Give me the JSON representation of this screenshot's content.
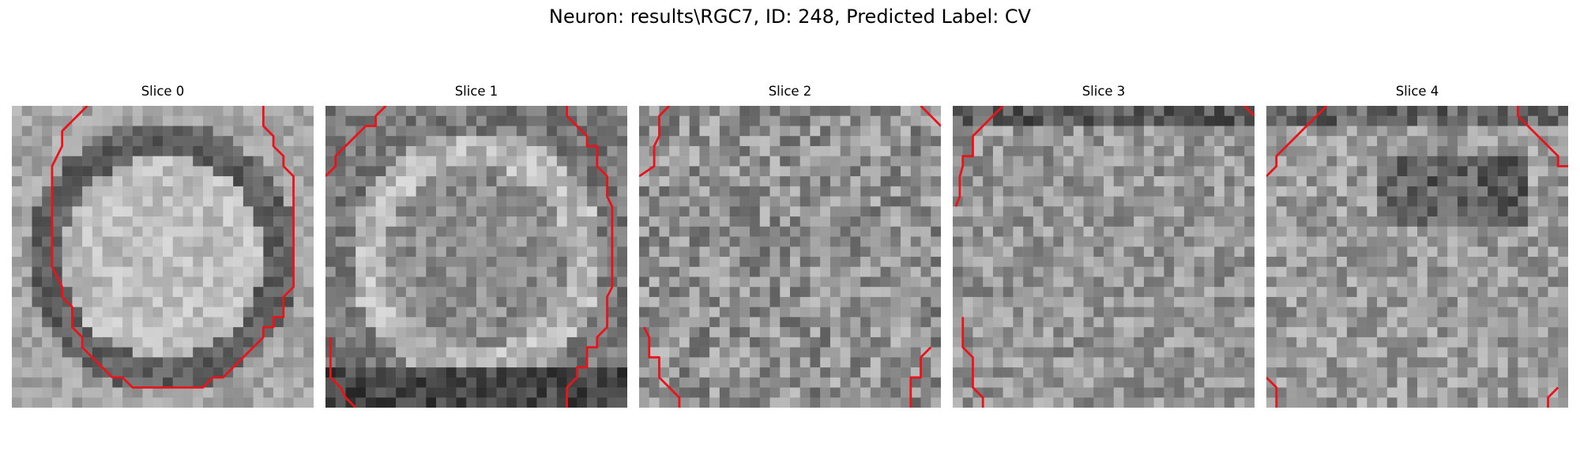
{
  "figure": {
    "title": "Neuron: results\\RGC7, ID: 248, Predicted Label: CV"
  },
  "panels": [
    {
      "title": "Slice 0"
    },
    {
      "title": "Slice 1"
    },
    {
      "title": "Slice 2"
    },
    {
      "title": "Slice 3"
    },
    {
      "title": "Slice 4"
    }
  ],
  "colors": {
    "contour": "#e8141c",
    "background": "#ffffff",
    "image_colormap": "grayscale"
  }
}
